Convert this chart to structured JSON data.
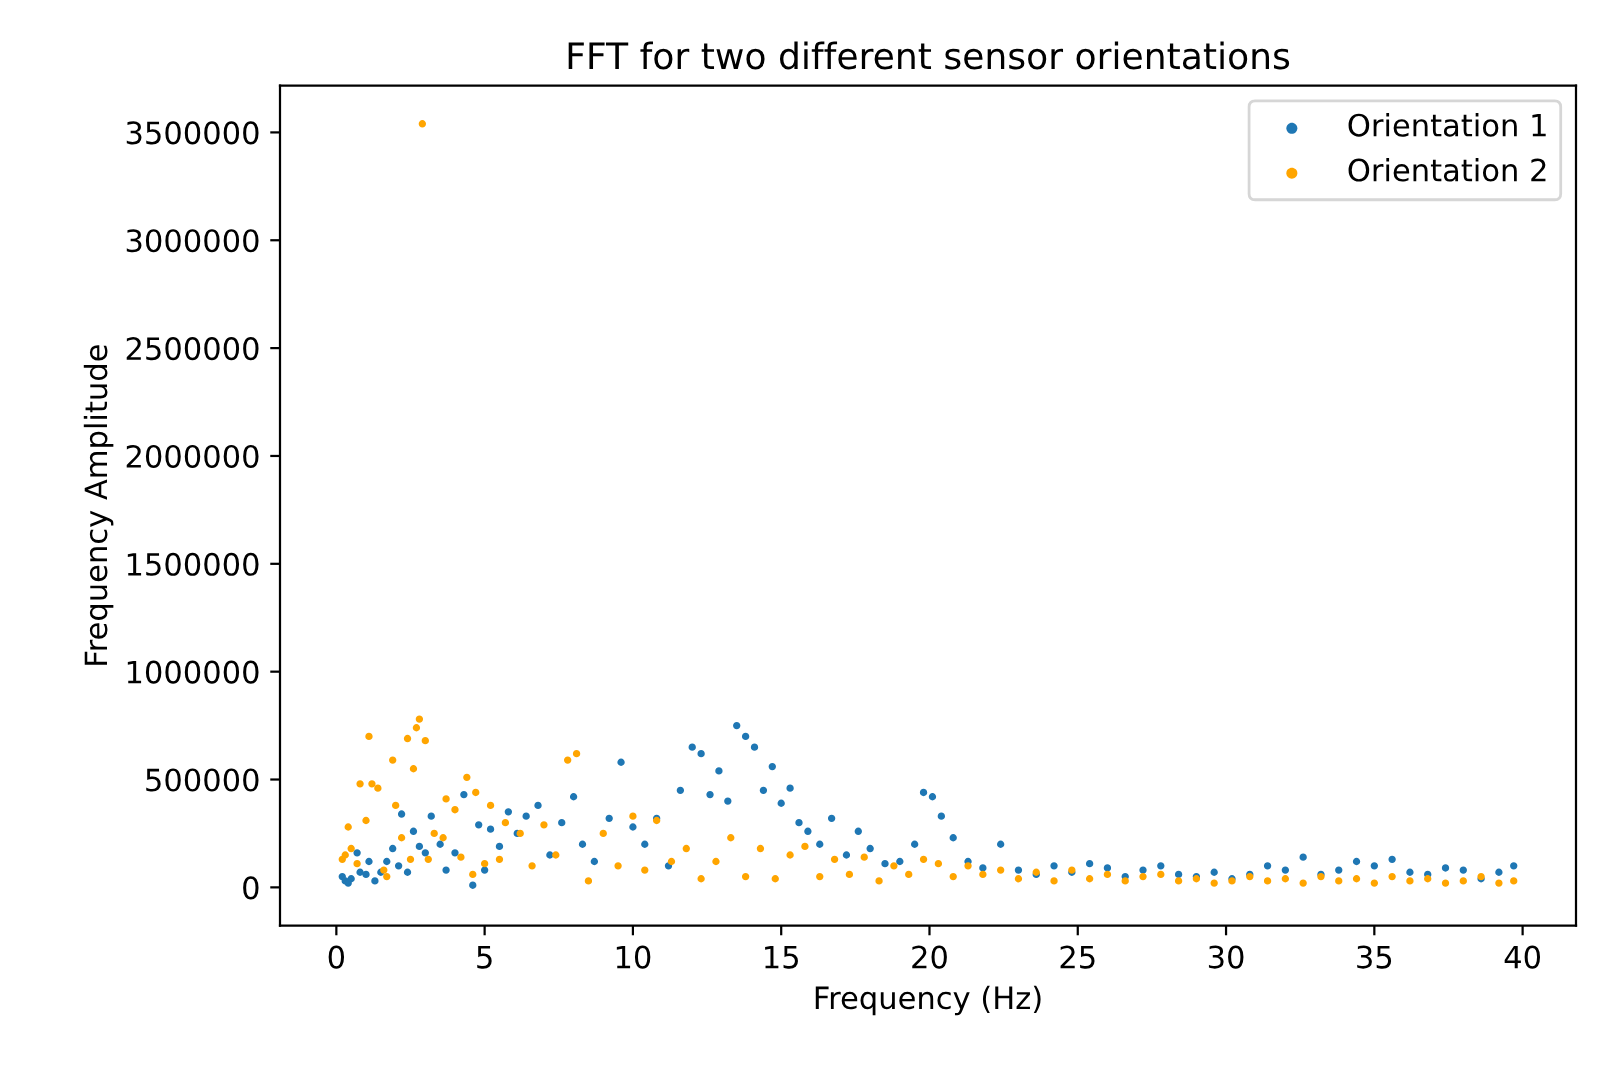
{
  "chart_data": {
    "type": "scatter",
    "title": "FFT for two different sensor orientations",
    "xlabel": "Frequency (Hz)",
    "ylabel": "Frequency Amplitude",
    "xlim": [
      -1.9,
      41.8
    ],
    "xticks": [
      0,
      5,
      10,
      15,
      20,
      25,
      30,
      35,
      40
    ],
    "ylim": [
      -177000,
      3717000
    ],
    "yticks": [
      0,
      500000,
      1000000,
      1500000,
      2000000,
      2500000,
      3000000,
      3500000
    ],
    "grid": false,
    "legend": "top right",
    "marker": "circle",
    "series": [
      {
        "name": "Orientation 1",
        "color": "#1f77b4",
        "x": [
          0.2,
          0.3,
          0.4,
          0.5,
          0.7,
          0.8,
          1.0,
          1.1,
          1.3,
          1.5,
          1.7,
          1.9,
          2.1,
          2.2,
          2.4,
          2.6,
          2.8,
          3.0,
          3.2,
          3.5,
          3.7,
          4.0,
          4.3,
          4.6,
          4.8,
          5.0,
          5.2,
          5.5,
          5.8,
          6.1,
          6.4,
          6.8,
          7.2,
          7.6,
          8.0,
          8.3,
          8.7,
          9.2,
          9.6,
          10.0,
          10.4,
          10.8,
          11.2,
          11.6,
          12.0,
          12.3,
          12.6,
          12.9,
          13.2,
          13.5,
          13.8,
          14.1,
          14.4,
          14.7,
          15.0,
          15.3,
          15.6,
          15.9,
          16.3,
          16.7,
          17.2,
          17.6,
          18.0,
          18.5,
          19.0,
          19.5,
          19.8,
          20.1,
          20.4,
          20.8,
          21.3,
          21.8,
          22.4,
          23.0,
          23.6,
          24.2,
          24.8,
          25.4,
          26.0,
          26.6,
          27.2,
          27.8,
          28.4,
          29.0,
          29.6,
          30.2,
          30.8,
          31.4,
          32.0,
          32.6,
          33.2,
          33.8,
          34.4,
          35.0,
          35.6,
          36.2,
          36.8,
          37.4,
          38.0,
          38.6,
          39.2,
          39.7
        ],
        "values": [
          50000,
          30000,
          20000,
          40000,
          160000,
          70000,
          60000,
          120000,
          30000,
          70000,
          120000,
          180000,
          100000,
          340000,
          70000,
          260000,
          190000,
          160000,
          330000,
          200000,
          80000,
          160000,
          430000,
          10000,
          290000,
          80000,
          270000,
          190000,
          350000,
          250000,
          330000,
          380000,
          150000,
          300000,
          420000,
          200000,
          120000,
          320000,
          580000,
          280000,
          200000,
          320000,
          100000,
          450000,
          650000,
          620000,
          430000,
          540000,
          400000,
          750000,
          700000,
          650000,
          450000,
          560000,
          390000,
          460000,
          300000,
          260000,
          200000,
          320000,
          150000,
          260000,
          180000,
          110000,
          120000,
          200000,
          440000,
          420000,
          330000,
          230000,
          120000,
          90000,
          200000,
          80000,
          60000,
          100000,
          70000,
          110000,
          90000,
          50000,
          80000,
          100000,
          60000,
          50000,
          70000,
          40000,
          60000,
          100000,
          80000,
          140000,
          60000,
          80000,
          120000,
          100000,
          130000,
          70000,
          60000,
          90000,
          80000,
          40000,
          70000,
          100000
        ]
      },
      {
        "name": "Orientation 2",
        "color": "#ffa500",
        "x": [
          0.2,
          0.3,
          0.4,
          0.5,
          0.7,
          0.8,
          1.0,
          1.1,
          1.2,
          1.4,
          1.6,
          1.7,
          1.9,
          2.0,
          2.2,
          2.4,
          2.5,
          2.6,
          2.7,
          2.8,
          2.9,
          3.0,
          3.1,
          3.3,
          3.6,
          3.7,
          4.0,
          4.2,
          4.4,
          4.6,
          4.7,
          5.0,
          5.2,
          5.5,
          5.7,
          6.2,
          6.6,
          7.0,
          7.4,
          7.8,
          8.1,
          8.5,
          9.0,
          9.5,
          10.0,
          10.4,
          10.8,
          11.3,
          11.8,
          12.3,
          12.8,
          13.3,
          13.8,
          14.3,
          14.8,
          15.3,
          15.8,
          16.3,
          16.8,
          17.3,
          17.8,
          18.3,
          18.8,
          19.3,
          19.8,
          20.3,
          20.8,
          21.3,
          21.8,
          22.4,
          23.0,
          23.6,
          24.2,
          24.8,
          25.4,
          26.0,
          26.6,
          27.2,
          27.8,
          28.4,
          29.0,
          29.6,
          30.2,
          30.8,
          31.4,
          32.0,
          32.6,
          33.2,
          33.8,
          34.4,
          35.0,
          35.6,
          36.2,
          36.8,
          37.4,
          38.0,
          38.6,
          39.2,
          39.7
        ],
        "values": [
          130000,
          150000,
          280000,
          180000,
          110000,
          480000,
          310000,
          700000,
          480000,
          460000,
          80000,
          50000,
          590000,
          380000,
          230000,
          690000,
          130000,
          550000,
          740000,
          780000,
          3540000,
          680000,
          130000,
          250000,
          230000,
          410000,
          360000,
          140000,
          510000,
          60000,
          440000,
          110000,
          380000,
          130000,
          300000,
          250000,
          100000,
          290000,
          150000,
          590000,
          620000,
          30000,
          250000,
          100000,
          330000,
          80000,
          310000,
          120000,
          180000,
          40000,
          120000,
          230000,
          50000,
          180000,
          40000,
          150000,
          190000,
          50000,
          130000,
          60000,
          140000,
          30000,
          100000,
          60000,
          130000,
          110000,
          50000,
          100000,
          60000,
          80000,
          40000,
          70000,
          30000,
          80000,
          40000,
          60000,
          30000,
          50000,
          60000,
          30000,
          40000,
          20000,
          30000,
          50000,
          30000,
          40000,
          20000,
          50000,
          30000,
          40000,
          20000,
          50000,
          30000,
          40000,
          20000,
          30000,
          50000,
          20000,
          30000
        ]
      }
    ]
  }
}
